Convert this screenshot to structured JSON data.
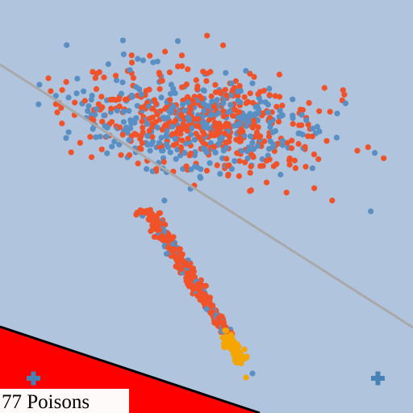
{
  "status": {
    "poison_count": "77 Poisons"
  }
}
